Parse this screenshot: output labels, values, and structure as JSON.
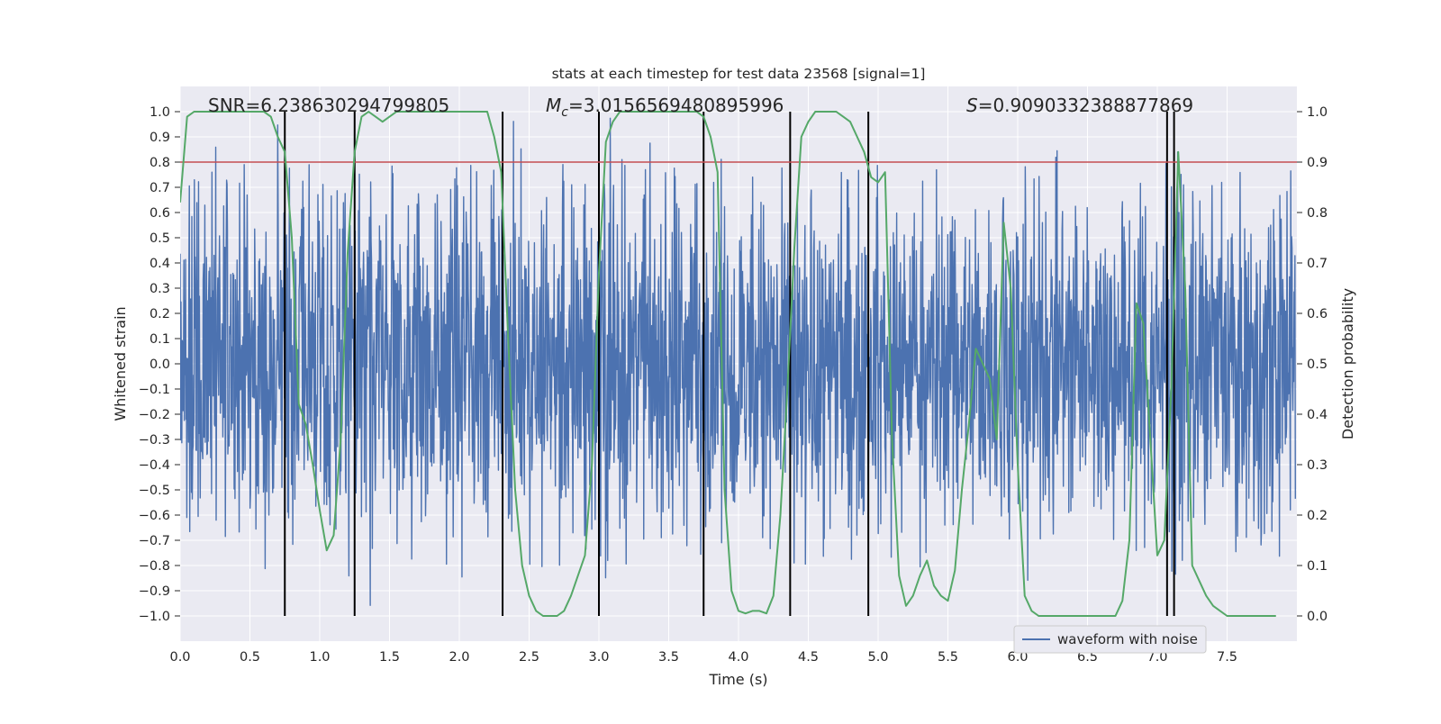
{
  "chart_data": {
    "type": "line",
    "title": "stats at each timestep for test data 23568 [signal=1]",
    "xlabel": "Time (s)",
    "ylabel_left": "Whitened strain",
    "ylabel_right": "Detection probability",
    "xlim": [
      0.0,
      8.0
    ],
    "ylim_left": [
      -1.1,
      1.1
    ],
    "ylim_right": [
      -0.05,
      1.05
    ],
    "x_ticks": [
      "0.0",
      "0.5",
      "1.0",
      "1.5",
      "2.0",
      "2.5",
      "3.0",
      "3.5",
      "4.0",
      "4.5",
      "5.0",
      "5.5",
      "6.0",
      "6.5",
      "7.0",
      "7.5"
    ],
    "y_ticks_left": [
      "1.0",
      "0.9",
      "0.8",
      "0.7",
      "0.6",
      "0.5",
      "0.4",
      "0.3",
      "0.2",
      "0.1",
      "0.0",
      "−0.1",
      "−0.2",
      "−0.3",
      "−0.4",
      "−0.5",
      "−0.6",
      "−0.7",
      "−0.8",
      "−0.9",
      "−1.0"
    ],
    "y_ticks_right": [
      "1.0",
      "0.9",
      "0.8",
      "0.7",
      "0.6",
      "0.5",
      "0.4",
      "0.3",
      "0.2",
      "0.1",
      "0.0"
    ],
    "grid": true,
    "legend": {
      "position": "lower-right",
      "entries": [
        "waveform with noise"
      ]
    },
    "annotations": {
      "snr": "SNR=6.238630294799805",
      "mc_symbol": "M",
      "mc_sub": "c",
      "mc_value": "=3.0156569480895996",
      "s_symbol": "S",
      "s_value": "=0.9090332388877869"
    },
    "colors": {
      "waveform": "#4c72b0",
      "probability": "#55a868",
      "threshold": "#c44e52",
      "markers": "#000000",
      "background": "#eaeaf2",
      "grid": "#ffffff"
    },
    "threshold_line_left_y": 0.8,
    "event_markers_x": [
      0.75,
      1.25,
      2.31,
      3.0,
      3.75,
      4.37,
      4.93,
      7.07,
      7.12
    ],
    "waveform_series": {
      "name": "waveform with noise",
      "dt": 0.003,
      "typical_amplitude": 0.6,
      "peak_amplitude": 1.0
    },
    "probability_series": {
      "x": [
        0.0,
        0.05,
        0.1,
        0.15,
        0.2,
        0.3,
        0.4,
        0.5,
        0.6,
        0.65,
        0.7,
        0.75,
        0.8,
        0.85,
        0.9,
        0.95,
        1.0,
        1.05,
        1.1,
        1.15,
        1.2,
        1.25,
        1.3,
        1.35,
        1.4,
        1.45,
        1.5,
        1.55,
        1.6,
        1.7,
        1.8,
        1.9,
        2.0,
        2.1,
        2.2,
        2.25,
        2.3,
        2.35,
        2.4,
        2.45,
        2.5,
        2.55,
        2.6,
        2.65,
        2.7,
        2.75,
        2.8,
        2.85,
        2.9,
        2.95,
        3.0,
        3.05,
        3.1,
        3.15,
        3.2,
        3.3,
        3.4,
        3.5,
        3.6,
        3.7,
        3.75,
        3.8,
        3.85,
        3.9,
        3.95,
        4.0,
        4.05,
        4.1,
        4.15,
        4.2,
        4.25,
        4.3,
        4.35,
        4.4,
        4.45,
        4.5,
        4.55,
        4.6,
        4.7,
        4.75,
        4.8,
        4.85,
        4.9,
        4.95,
        5.0,
        5.05,
        5.1,
        5.15,
        5.2,
        5.25,
        5.3,
        5.35,
        5.4,
        5.45,
        5.5,
        5.55,
        5.6,
        5.65,
        5.7,
        5.75,
        5.8,
        5.85,
        5.9,
        5.95,
        6.0,
        6.05,
        6.1,
        6.15,
        6.2,
        6.4,
        6.6,
        6.7,
        6.75,
        6.8,
        6.85,
        6.9,
        6.95,
        7.0,
        7.05,
        7.1,
        7.15,
        7.2,
        7.25,
        7.3,
        7.35,
        7.4,
        7.45,
        7.5,
        7.6,
        7.7,
        7.8,
        7.85
      ],
      "y": [
        0.82,
        0.99,
        1.0,
        1.0,
        1.0,
        1.0,
        1.0,
        1.0,
        1.0,
        0.99,
        0.95,
        0.92,
        0.75,
        0.42,
        0.38,
        0.3,
        0.21,
        0.13,
        0.16,
        0.35,
        0.72,
        0.92,
        0.99,
        1.0,
        0.99,
        0.98,
        0.99,
        1.0,
        1.0,
        1.0,
        1.0,
        1.0,
        1.0,
        1.0,
        1.0,
        0.95,
        0.88,
        0.55,
        0.25,
        0.1,
        0.04,
        0.01,
        0.0,
        0.0,
        0.0,
        0.01,
        0.04,
        0.08,
        0.12,
        0.3,
        0.68,
        0.94,
        0.98,
        1.0,
        1.0,
        1.0,
        1.0,
        1.0,
        1.0,
        1.0,
        0.99,
        0.95,
        0.88,
        0.25,
        0.05,
        0.01,
        0.005,
        0.01,
        0.01,
        0.005,
        0.04,
        0.2,
        0.45,
        0.73,
        0.95,
        0.98,
        1.0,
        1.0,
        1.0,
        0.99,
        0.98,
        0.95,
        0.92,
        0.87,
        0.86,
        0.88,
        0.35,
        0.08,
        0.02,
        0.04,
        0.08,
        0.11,
        0.06,
        0.04,
        0.03,
        0.09,
        0.25,
        0.38,
        0.53,
        0.5,
        0.47,
        0.35,
        0.78,
        0.65,
        0.3,
        0.04,
        0.01,
        0.0,
        0.0,
        0.0,
        0.0,
        0.0,
        0.03,
        0.15,
        0.62,
        0.58,
        0.35,
        0.12,
        0.15,
        0.45,
        0.92,
        0.65,
        0.1,
        0.07,
        0.04,
        0.02,
        0.01,
        0.0,
        0.0,
        0.0,
        0.0,
        0.0
      ]
    }
  }
}
